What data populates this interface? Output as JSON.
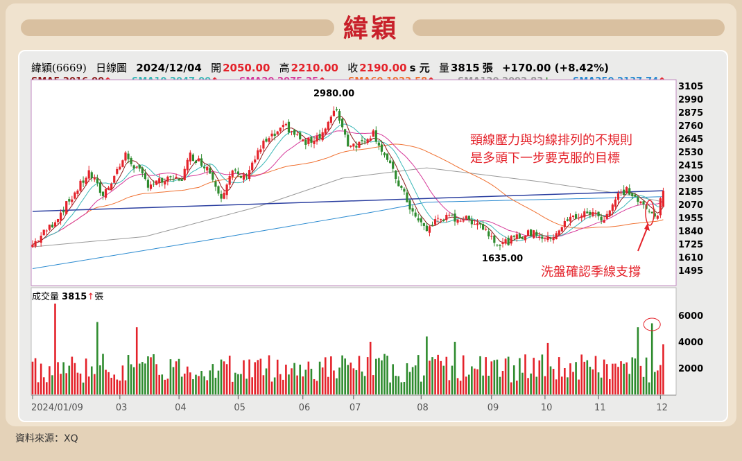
{
  "title": "緯穎",
  "header": {
    "name": "緯穎(6669)",
    "type": "日線圖",
    "date": "2024/12/04",
    "open_label": "開",
    "open": "2050.00",
    "high_label": "高",
    "high": "2210.00",
    "close_label": "收",
    "close": "2190.00",
    "unit": "s 元",
    "vol_label": "量",
    "volume": "3815",
    "vol_unit": "張",
    "change": "+170.00 (+8.42%)"
  },
  "smas": [
    {
      "label": "SMA5 2016.00",
      "arrow": "↑",
      "color": "#8b1a1a"
    },
    {
      "label": "SMA10 2047.00",
      "arrow": "↑",
      "color": "#3ab7b7"
    },
    {
      "label": "SMA20 2075.25",
      "arrow": "↑",
      "color": "#d63a9a"
    },
    {
      "label": "SMA60 1922.58",
      "arrow": "↑",
      "color": "#f07030"
    },
    {
      "label": "SMA120 2092.83",
      "arrow": "↓",
      "color": "#999999"
    },
    {
      "label": "SMA250 2137.74",
      "arrow": "↑",
      "color": "#2a8ad0"
    }
  ],
  "volume_label": {
    "text": "成交量",
    "value": "3815",
    "arrow": "↑",
    "unit": "張"
  },
  "annotations": {
    "resistance": [
      "頸線壓力與均線排列的不規則",
      "是多頭下一步要克服的目標"
    ],
    "support": "洗盤確認季線支撐",
    "high": "2980.00",
    "low": "1635.00"
  },
  "source": "資料來源：XQ",
  "colors": {
    "up": "#e4222a",
    "down": "#2e8b2e",
    "trend": "#2b3fa0"
  },
  "chart_data": {
    "type": "candlestick",
    "price_ticks": [
      "3105",
      "2990",
      "2875",
      "2760",
      "2645",
      "2530",
      "2415",
      "2300",
      "2185",
      "2070",
      "1955",
      "1840",
      "1725",
      "1610",
      "1495"
    ],
    "volume_ticks": [
      "6000",
      "4000",
      "2000"
    ],
    "x_ticks": [
      {
        "label": "2024/01/09",
        "day": 0
      },
      {
        "label": "03",
        "day": 31
      },
      {
        "label": "04",
        "day": 52
      },
      {
        "label": "05",
        "day": 73
      },
      {
        "label": "06",
        "day": 96
      },
      {
        "label": "07",
        "day": 114
      },
      {
        "label": "08",
        "day": 138
      },
      {
        "label": "09",
        "day": 163
      },
      {
        "label": "10",
        "day": 182
      },
      {
        "label": "11",
        "day": 201
      },
      {
        "label": "12",
        "day": 223
      }
    ],
    "close_keypoints": [
      [
        0,
        1720
      ],
      [
        7,
        1900
      ],
      [
        13,
        2100
      ],
      [
        20,
        2350
      ],
      [
        25,
        2150
      ],
      [
        33,
        2500
      ],
      [
        38,
        2350
      ],
      [
        41,
        2250
      ],
      [
        53,
        2300
      ],
      [
        56,
        2500
      ],
      [
        62,
        2400
      ],
      [
        67,
        2150
      ],
      [
        71,
        2350
      ],
      [
        75,
        2300
      ],
      [
        82,
        2600
      ],
      [
        90,
        2750
      ],
      [
        97,
        2600
      ],
      [
        103,
        2700
      ],
      [
        108,
        2900
      ],
      [
        112,
        2600
      ],
      [
        116,
        2600
      ],
      [
        121,
        2700
      ],
      [
        126,
        2450
      ],
      [
        131,
        2200
      ],
      [
        136,
        1950
      ],
      [
        140,
        1850
      ],
      [
        144,
        1950
      ],
      [
        151,
        1950
      ],
      [
        158,
        1920
      ],
      [
        166,
        1720
      ],
      [
        172,
        1780
      ],
      [
        178,
        1830
      ],
      [
        183,
        1760
      ],
      [
        191,
        1950
      ],
      [
        198,
        2000
      ],
      [
        203,
        1950
      ],
      [
        208,
        2150
      ],
      [
        211,
        2200
      ],
      [
        215,
        2100
      ],
      [
        219,
        2000
      ],
      [
        222,
        1990
      ],
      [
        224,
        2190
      ]
    ],
    "sma120_keypoints": [
      [
        0,
        1700
      ],
      [
        40,
        1790
      ],
      [
        80,
        2050
      ],
      [
        110,
        2300
      ],
      [
        140,
        2390
      ],
      [
        180,
        2270
      ],
      [
        210,
        2160
      ],
      [
        224,
        2093
      ]
    ],
    "sma250_keypoints": [
      [
        0,
        1510
      ],
      [
        60,
        1750
      ],
      [
        120,
        2000
      ],
      [
        140,
        2090
      ],
      [
        224,
        2138
      ]
    ],
    "neckline": [
      [
        0,
        2010
      ],
      [
        224,
        2190
      ]
    ],
    "volume_peaks": [
      [
        8,
        6900
      ],
      [
        23,
        5500
      ],
      [
        37,
        5100
      ],
      [
        120,
        4000
      ],
      [
        140,
        4400
      ],
      [
        150,
        4000
      ],
      [
        183,
        3900
      ],
      [
        215,
        5100
      ],
      [
        220,
        5400
      ],
      [
        224,
        3815
      ]
    ],
    "ylim": [
      1420,
      3160
    ],
    "vol_ylim": [
      0,
      7200
    ]
  }
}
